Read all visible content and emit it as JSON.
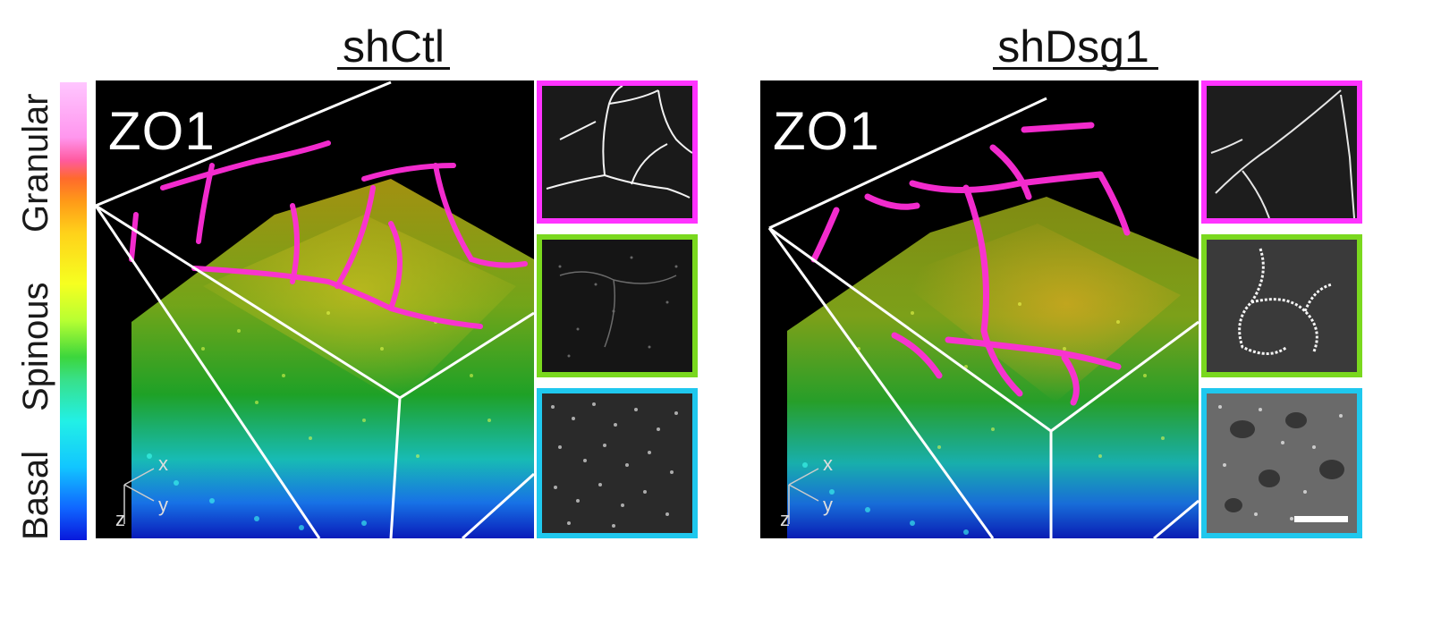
{
  "titles": {
    "left": "shCtl",
    "right": "shDsg1"
  },
  "colorbar": {
    "labels": {
      "top": "Granular",
      "middle": "Spinous",
      "bottom": "Basal"
    }
  },
  "panels": {
    "left": {
      "marker": "ZO1"
    },
    "right": {
      "marker": "ZO1"
    }
  },
  "axes": {
    "x": "x",
    "y": "y",
    "z": "z"
  },
  "insets": {
    "colors": {
      "top": "#ff33ff",
      "middle": "#7ad81e",
      "bottom": "#1fc8ee"
    }
  }
}
